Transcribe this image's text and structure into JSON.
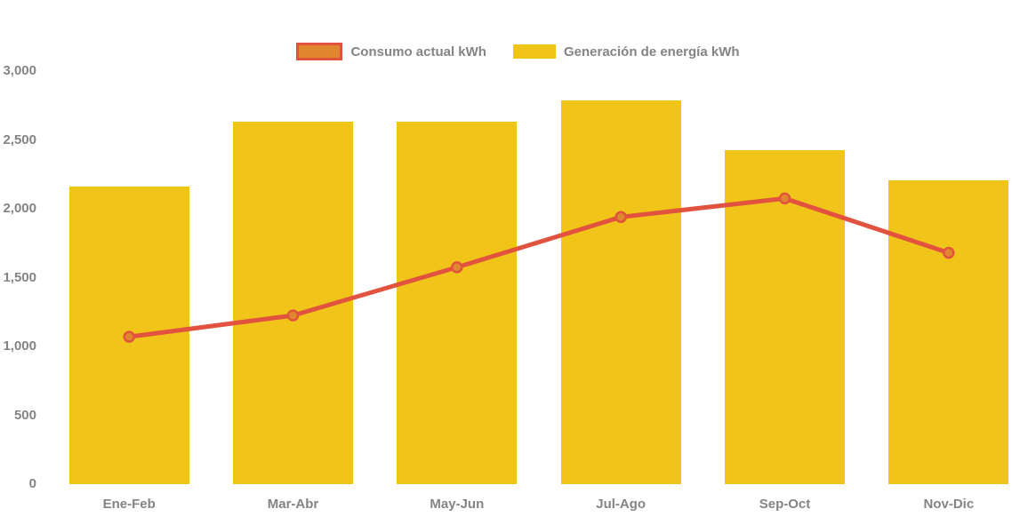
{
  "chart_data": {
    "type": "bar",
    "title": "",
    "categories": [
      "Ene-Feb",
      "Mar-Abr",
      "May-Jun",
      "Jul-Ago",
      "Sep-Oct",
      "Nov-Dic"
    ],
    "series": [
      {
        "name": "Consumo actual kWh",
        "type": "line",
        "values": [
          1070,
          1225,
          1575,
          1940,
          2075,
          1680
        ],
        "color": "#E2533F",
        "marker_fill": "#E0862F"
      },
      {
        "name": "Generación de energía kWh",
        "type": "bar",
        "values": [
          2160,
          2630,
          2630,
          2790,
          2425,
          2205
        ],
        "color": "#F0C419"
      }
    ],
    "ylim": [
      0,
      3000
    ],
    "y_tick_labels": [
      "0",
      "500",
      "1,000",
      "1,500",
      "2,000",
      "2,500",
      "3,000"
    ],
    "y_tick_values": [
      0,
      500,
      1000,
      1500,
      2000,
      2500,
      3000
    ],
    "grid": false,
    "legend_position": "top-center",
    "colors": {
      "axis_text": "#848484",
      "background": "#FFFFFF"
    }
  }
}
